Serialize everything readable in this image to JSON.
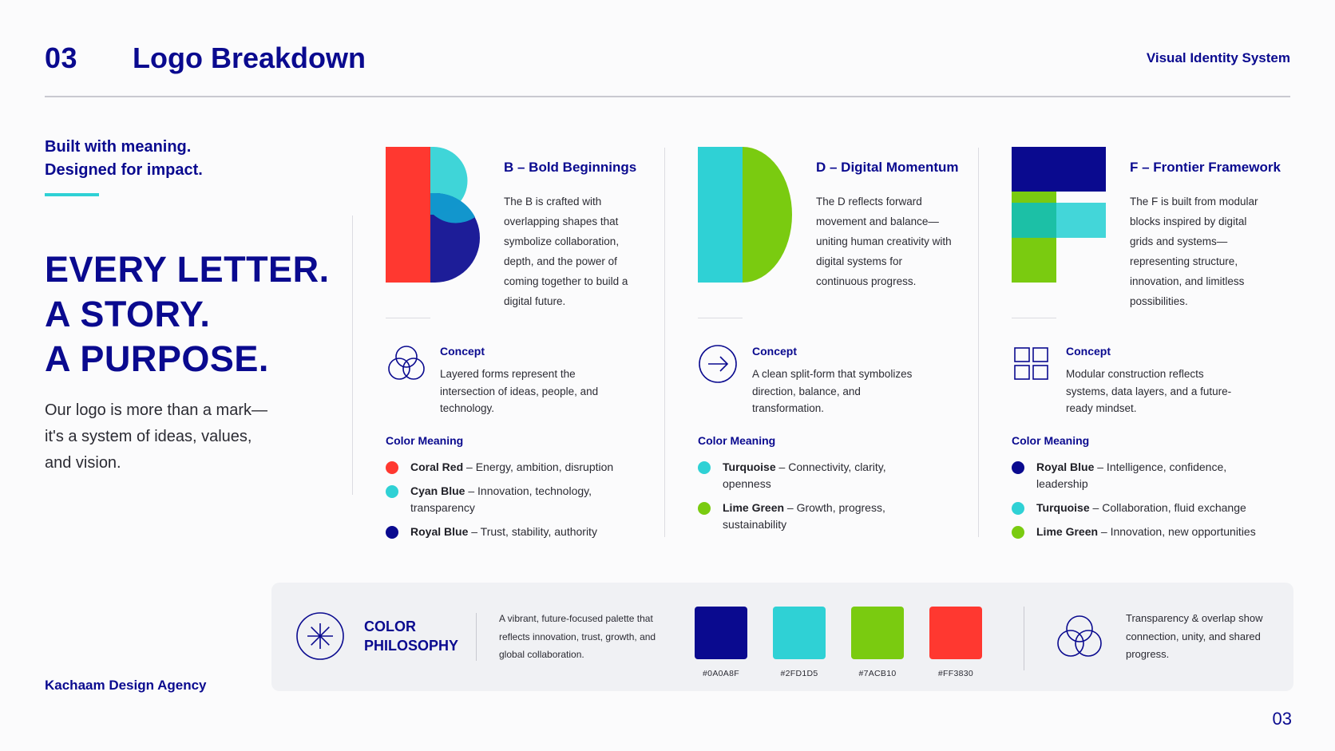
{
  "header": {
    "number": "03",
    "title": "Logo Breakdown",
    "right_label": "Visual Identity System"
  },
  "left": {
    "tagline_line1": "Built with meaning.",
    "tagline_line2": "Designed for impact.",
    "headline": [
      "EVERY LETTER.",
      "A STORY.",
      "A PURPOSE."
    ],
    "intro_lines": [
      "Our logo is more than a mark—",
      "it's a system of ideas, values,",
      "and vision."
    ],
    "agency": "Kachaam Design Agency"
  },
  "letters": [
    {
      "title": "B – Bold Beginnings",
      "description": "The B is crafted with overlapping shapes that symbolize collaboration, depth, and the power of coming together to build a digital future.",
      "concept_label": "Concept",
      "concept_icon": "overlapping-circles-icon",
      "concept_text": "Layered forms represent the intersection of ideas, people, and technology.",
      "color_meaning_label": "Color Meaning",
      "colors": [
        {
          "name": "Coral Red",
          "meaning": " – Energy, ambition, disruption",
          "color": "#FF3830"
        },
        {
          "name": "Cyan Blue",
          "meaning": " – Innovation, technology, transparency",
          "color": "#2FD1D5"
        },
        {
          "name": "Royal Blue",
          "meaning": " – Trust, stability, authority",
          "color": "#0A0A8F"
        }
      ]
    },
    {
      "title": "D – Digital Momentum",
      "description": "The D reflects forward movement and balance—uniting human creativity with digital systems for continuous progress.",
      "concept_label": "Concept",
      "concept_icon": "arrow-right-circle-icon",
      "concept_text": "A clean split-form that symbolizes direction, balance, and transformation.",
      "color_meaning_label": "Color Meaning",
      "colors": [
        {
          "name": "Turquoise",
          "meaning": " – Connectivity, clarity, openness",
          "color": "#2FD1D5"
        },
        {
          "name": "Lime Green",
          "meaning": " – Growth, progress, sustainability",
          "color": "#7ACB10"
        }
      ]
    },
    {
      "title": "F – Frontier Framework",
      "description": "The F is built from modular blocks inspired by digital grids and systems—representing structure, innovation, and limitless possibilities.",
      "concept_label": "Concept",
      "concept_icon": "grid-squares-icon",
      "concept_text": "Modular construction reflects systems, data layers, and a future-ready mindset.",
      "color_meaning_label": "Color Meaning",
      "colors": [
        {
          "name": "Royal Blue",
          "meaning": " – Intelligence, confidence, leadership",
          "color": "#0A0A8F"
        },
        {
          "name": "Turquoise",
          "meaning": " – Collaboration, fluid exchange",
          "color": "#2FD1D5"
        },
        {
          "name": "Lime Green",
          "meaning": " – Innovation, new opportunities",
          "color": "#7ACB10"
        }
      ]
    }
  ],
  "palette": {
    "title_line1": "COLOR",
    "title_line2": "PHILOSOPHY",
    "icon": "asterisk-circle-icon",
    "description": "A vibrant, future-focused palette that reflects innovation, trust, growth, and global collaboration.",
    "swatches": [
      {
        "hex": "#0A0A8F",
        "color": "#0A0A8F"
      },
      {
        "hex": "#2FD1D5",
        "color": "#2FD1D5"
      },
      {
        "hex": "#7ACB10",
        "color": "#7ACB10"
      },
      {
        "hex": "#FF3830",
        "color": "#FF3830"
      }
    ],
    "transparency_icon": "overlapping-circles-icon",
    "transparency_text": "Transparency & overlap show connection, unity, and shared progress."
  },
  "page_number": "03"
}
